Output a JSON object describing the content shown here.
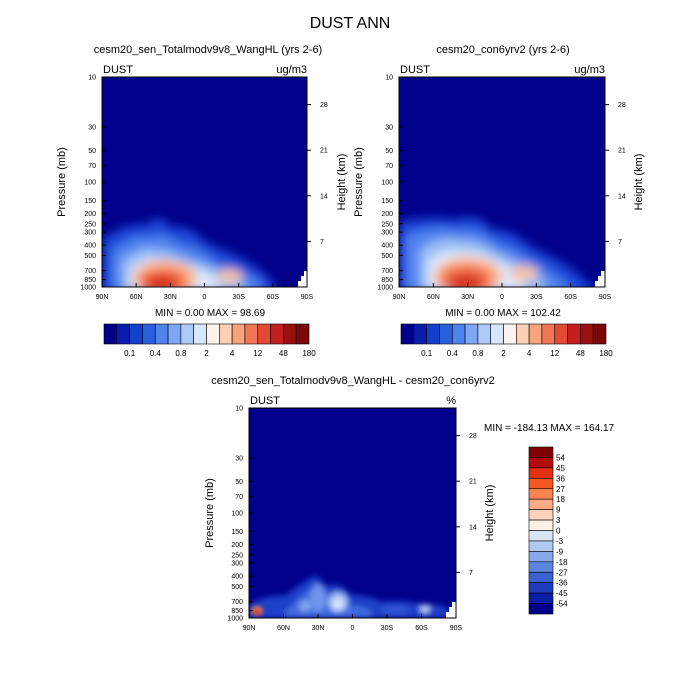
{
  "main_title": "DUST ANN",
  "panels": [
    {
      "title": "cesm20_sen_Totalmodv9v8_WangHL (yrs 2-6)",
      "corner_left": "DUST",
      "corner_right": "ug/m3",
      "stats": "MIN =   0.00  MAX =  98.69",
      "ylabel_left": "Pressure (mb)",
      "ylabel_right": "Height (km)"
    },
    {
      "title": "cesm20_con6yrv2 (yrs 2-6)",
      "corner_left": "DUST",
      "corner_right": "ug/m3",
      "stats": "MIN =   0.00  MAX =  102.42",
      "ylabel_left": "Pressure (mb)",
      "ylabel_right": "Height (km)"
    },
    {
      "title": "cesm20_sen_Totalmodv9v8_WangHL - cesm20_con6yrv2",
      "corner_left": "DUST",
      "corner_right": "%",
      "stats": "MIN = -184.13  MAX = 164.17",
      "ylabel_left": "Pressure (mb)",
      "ylabel_right": "Height (km)"
    }
  ],
  "chart_data": [
    {
      "type": "heatmap",
      "title": "cesm20_sen_Totalmodv9v8_WangHL (yrs 2-6)",
      "ylabel": "Pressure (mb)",
      "ylabel_right": "Height (km)",
      "x_ticks": [
        "90N",
        "60N",
        "30N",
        "0",
        "30S",
        "60S",
        "90S"
      ],
      "x_range": [
        90,
        -90
      ],
      "y_ticks": [
        10,
        30,
        50,
        70,
        100,
        150,
        200,
        250,
        300,
        400,
        500,
        700,
        850,
        1000
      ],
      "y_range": [
        10,
        1000
      ],
      "y_scale": "log",
      "y_right_ticks": [
        28,
        21,
        14,
        7
      ],
      "units": "ug/m3",
      "min": 0.0,
      "max": 98.69,
      "colorbar_levels": [
        "0.1",
        "0.4",
        "0.8",
        "2",
        "4",
        "12",
        "48",
        "180"
      ],
      "features": [
        {
          "lat": 15,
          "p": 850,
          "value": 98.69,
          "note": "dust maximum"
        }
      ]
    },
    {
      "type": "heatmap",
      "title": "cesm20_con6yrv2 (yrs 2-6)",
      "ylabel": "Pressure (mb)",
      "ylabel_right": "Height (km)",
      "x_ticks": [
        "90N",
        "60N",
        "30N",
        "0",
        "30S",
        "60S",
        "90S"
      ],
      "x_range": [
        90,
        -90
      ],
      "y_ticks": [
        10,
        30,
        50,
        70,
        100,
        150,
        200,
        250,
        300,
        400,
        500,
        700,
        850,
        1000
      ],
      "y_range": [
        10,
        1000
      ],
      "y_scale": "log",
      "y_right_ticks": [
        28,
        21,
        14,
        7
      ],
      "units": "ug/m3",
      "min": 0.0,
      "max": 102.42,
      "colorbar_levels": [
        "0.1",
        "0.4",
        "0.8",
        "2",
        "4",
        "12",
        "48",
        "180"
      ]
    },
    {
      "type": "heatmap",
      "title": "cesm20_sen_Totalmodv9v8_WangHL - cesm20_con6yrv2",
      "ylabel": "Pressure (mb)",
      "ylabel_right": "Height (km)",
      "x_ticks": [
        "90N",
        "60N",
        "30N",
        "0",
        "30S",
        "60S",
        "90S"
      ],
      "x_range": [
        90,
        -90
      ],
      "y_ticks": [
        10,
        30,
        50,
        70,
        100,
        150,
        200,
        250,
        300,
        400,
        500,
        700,
        850,
        1000
      ],
      "y_range": [
        10,
        1000
      ],
      "y_scale": "log",
      "y_right_ticks": [
        28,
        21,
        14,
        7
      ],
      "units": "%",
      "min": -184.13,
      "max": 164.17,
      "colorbar_levels": [
        "54",
        "45",
        "36",
        "27",
        "18",
        "9",
        "3",
        "0",
        "-3",
        "-9",
        "-18",
        "-27",
        "-36",
        "-45",
        "-54"
      ]
    }
  ],
  "colors": {
    "background_fill": "#00008b",
    "seq_scale": [
      "#00008b",
      "#0a1cad",
      "#1240cc",
      "#2a5fde",
      "#4f83ee",
      "#7da6f5",
      "#aecaf8",
      "#d6e6fb",
      "#fdf3ec",
      "#fbd0b5",
      "#f7a47e",
      "#f2765a",
      "#e24a33",
      "#c41e1e",
      "#9a0f0f",
      "#7a0808"
    ],
    "div_scale": [
      "#7f0000",
      "#b50d0d",
      "#e03010",
      "#f55a25",
      "#fa8450",
      "#fcab83",
      "#fdd3bc",
      "#fdf0e4",
      "#d8e6f8",
      "#b0cbf1",
      "#86aaea",
      "#5b86e0",
      "#3a62d1",
      "#1d3cbf",
      "#0b1fa6",
      "#00008b"
    ]
  }
}
